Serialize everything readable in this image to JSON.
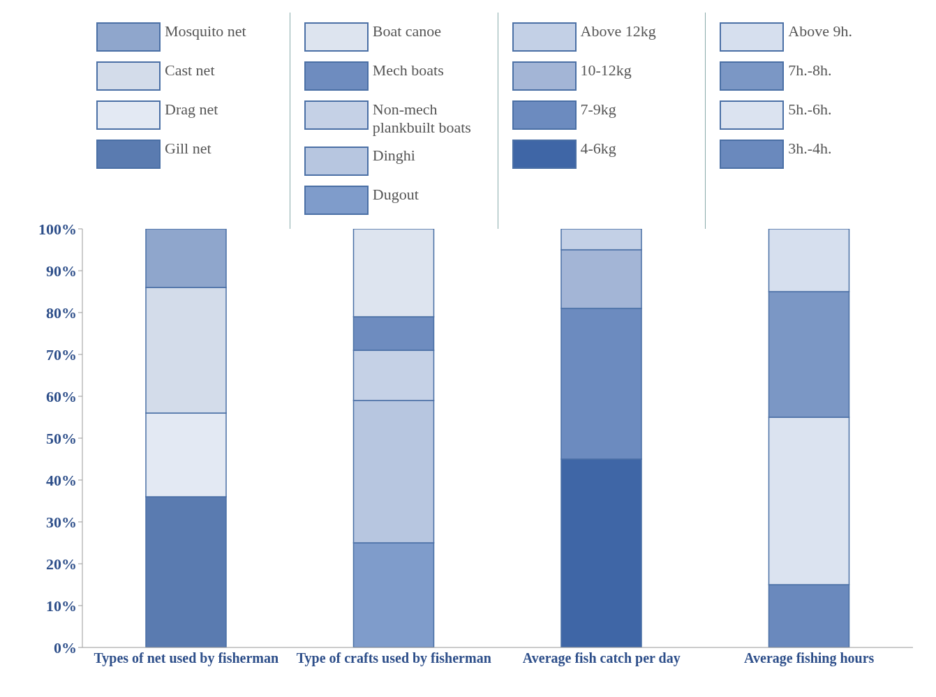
{
  "chart_data": {
    "type": "bar",
    "stacked": true,
    "legend": "top",
    "categories": [
      "Types of net used by fisherman",
      "Type of crafts used by fisherman",
      "Average fish catch per day",
      "Average fishing hours"
    ],
    "ylim": [
      0,
      100
    ],
    "yticks": [
      {
        "value": 0,
        "label": "0%"
      },
      {
        "value": 10,
        "label": "10%"
      },
      {
        "value": 20,
        "label": "20%"
      },
      {
        "value": 30,
        "label": "30%"
      },
      {
        "value": 40,
        "label": "40%"
      },
      {
        "value": 50,
        "label": "50%"
      },
      {
        "value": 60,
        "label": "60%"
      },
      {
        "value": 70,
        "label": "70%"
      },
      {
        "value": 80,
        "label": "80%"
      },
      {
        "value": 90,
        "label": "90%"
      },
      {
        "value": 100,
        "label": "100%"
      }
    ],
    "series": [
      {
        "name": "Gill net",
        "color": "#5a7bb0",
        "values": [
          36,
          null,
          null,
          null
        ]
      },
      {
        "name": "Drag net",
        "color": "#e3e9f3",
        "values": [
          20,
          null,
          null,
          null
        ]
      },
      {
        "name": "Cast net",
        "color": "#d3dcea",
        "values": [
          30,
          null,
          null,
          null
        ]
      },
      {
        "name": "Mosquito net",
        "color": "#8fa6cc",
        "values": [
          14,
          null,
          null,
          null
        ]
      },
      {
        "name": "Dugout",
        "color": "#7f9ccb",
        "values": [
          null,
          25,
          null,
          null
        ]
      },
      {
        "name": "Dinghi",
        "color": "#b7c6e0",
        "values": [
          null,
          34,
          null,
          null
        ]
      },
      {
        "name": "Non-mech plankbuilt boats",
        "color": "#c5d1e6",
        "values": [
          null,
          12,
          null,
          null
        ]
      },
      {
        "name": "Mech boats",
        "color": "#6e8cbf",
        "values": [
          null,
          8,
          null,
          null
        ]
      },
      {
        "name": "Boat canoe",
        "color": "#dde4ef",
        "values": [
          null,
          21,
          null,
          null
        ]
      },
      {
        "name": "4-6kg",
        "color": "#3f66a6",
        "values": [
          null,
          null,
          45,
          null
        ]
      },
      {
        "name": "7-9kg",
        "color": "#6c8bbf",
        "values": [
          null,
          null,
          36,
          null
        ]
      },
      {
        "name": "10-12kg",
        "color": "#a3b5d6",
        "values": [
          null,
          null,
          14,
          null
        ]
      },
      {
        "name": "Above 12kg",
        "color": "#c3d0e6",
        "values": [
          null,
          null,
          5,
          null
        ]
      },
      {
        "name": "3h.-4h.",
        "color": "#6a89bd",
        "values": [
          null,
          null,
          null,
          15
        ]
      },
      {
        "name": "5h.-6h.",
        "color": "#dbe3f0",
        "values": [
          null,
          null,
          null,
          40
        ]
      },
      {
        "name": "7h.-8h.",
        "color": "#7b97c5",
        "values": [
          null,
          null,
          null,
          30
        ]
      },
      {
        "name": "Above 9h.",
        "color": "#d6dfee",
        "values": [
          null,
          null,
          null,
          15
        ]
      }
    ]
  }
}
